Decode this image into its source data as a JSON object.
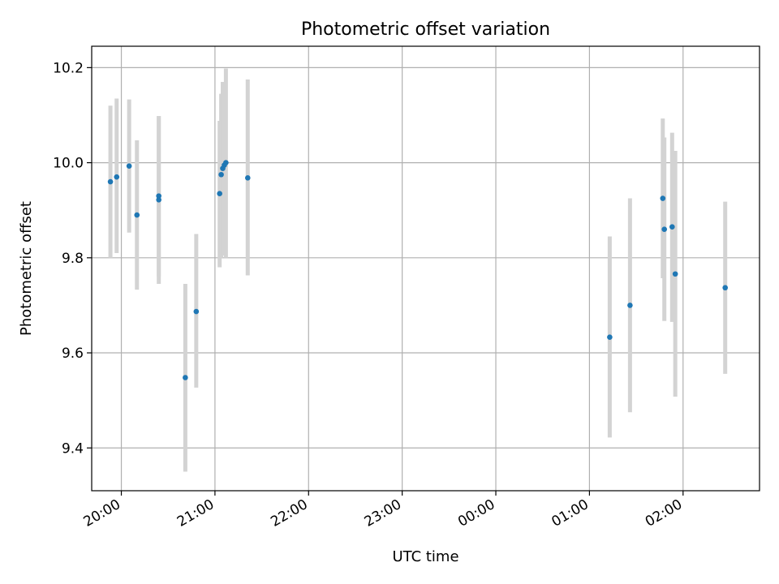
{
  "chart_data": {
    "type": "scatter",
    "title": "Photometric offset variation",
    "xlabel": "UTC time",
    "ylabel": "Photometric offset",
    "grid": true,
    "xlim": [
      "19:41",
      "02:49"
    ],
    "ylim": [
      9.31,
      10.245
    ],
    "x_ticks": [
      "20:00",
      "21:00",
      "22:00",
      "23:00",
      "00:00",
      "01:00",
      "02:00"
    ],
    "y_ticks": [
      9.4,
      9.6,
      9.8,
      10.0,
      10.2
    ],
    "y_tick_labels": [
      "9.4",
      "9.6",
      "9.8",
      "10.0",
      "10.2"
    ],
    "colors": {
      "point": "#1f77b4",
      "errorbar": "#d3d3d3",
      "grid": "#b0b0b0"
    },
    "points": [
      {
        "t": "19:53",
        "y": 9.96,
        "lo": 9.8,
        "hi": 10.12
      },
      {
        "t": "19:57",
        "y": 9.97,
        "lo": 9.81,
        "hi": 10.135
      },
      {
        "t": "20:05",
        "y": 9.993,
        "lo": 9.853,
        "hi": 10.133
      },
      {
        "t": "20:10",
        "y": 9.89,
        "lo": 9.733,
        "hi": 10.047
      },
      {
        "t": "20:24",
        "y": 9.93,
        "lo": 9.76,
        "hi": 10.098
      },
      {
        "t": "20:24",
        "y": 9.922,
        "lo": 9.745,
        "hi": 10.098
      },
      {
        "t": "20:41",
        "y": 9.548,
        "lo": 9.35,
        "hi": 9.745
      },
      {
        "t": "20:48",
        "y": 9.687,
        "lo": 9.527,
        "hi": 9.85
      },
      {
        "t": "21:03",
        "y": 9.935,
        "lo": 9.78,
        "hi": 10.088
      },
      {
        "t": "21:04",
        "y": 9.975,
        "lo": 9.8,
        "hi": 10.145
      },
      {
        "t": "21:05",
        "y": 9.988,
        "lo": 9.81,
        "hi": 10.17
      },
      {
        "t": "21:06",
        "y": 9.995,
        "lo": 9.805,
        "hi": 10.17
      },
      {
        "t": "21:07",
        "y": 10.0,
        "lo": 9.8,
        "hi": 10.198
      },
      {
        "t": "21:21",
        "y": 9.968,
        "lo": 9.763,
        "hi": 10.175
      },
      {
        "t": "01:13",
        "y": 9.633,
        "lo": 9.422,
        "hi": 9.845
      },
      {
        "t": "01:26",
        "y": 9.7,
        "lo": 9.475,
        "hi": 9.925
      },
      {
        "t": "01:47",
        "y": 9.925,
        "lo": 9.757,
        "hi": 10.093
      },
      {
        "t": "01:48",
        "y": 9.86,
        "lo": 9.667,
        "hi": 10.053
      },
      {
        "t": "01:53",
        "y": 9.865,
        "lo": 9.665,
        "hi": 10.063
      },
      {
        "t": "01:55",
        "y": 9.766,
        "lo": 9.508,
        "hi": 10.025
      },
      {
        "t": "02:27",
        "y": 9.737,
        "lo": 9.556,
        "hi": 9.918
      }
    ]
  }
}
